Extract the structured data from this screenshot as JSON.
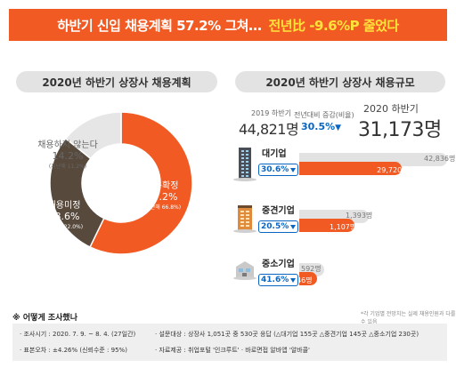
{
  "banner": {
    "title": "하반기 신입 채용계획 57.2% 그쳐…",
    "highlight": "전년比 -9.6%P 줄었다"
  },
  "left_panel": {
    "title": "2020년 하반기 상장사 채용계획"
  },
  "right_panel": {
    "title": "2020년 하반기 상장사 채용규모",
    "prev_label": "2019 하반기",
    "prev_value": "44,821명",
    "rate_label": "전년대비 증감(비율)",
    "rate_value": "30.5%",
    "cur_label": "2020 하반기",
    "cur_value": "31,173명",
    "note": "*각 기업별 전망치는 실제 채용인원과 다를 수 있음"
  },
  "chart_data": [
    {
      "type": "pie",
      "title": "2020년 하반기 상장사 채용계획",
      "donut": true,
      "slices": [
        {
          "label": "채용확정",
          "pct_text": "57.2%",
          "prev_text": "(지난해 66.8%)",
          "value": 57.2,
          "color": "#f15a22"
        },
        {
          "label": "채용미정",
          "pct_text": "28.6%",
          "prev_text": "(지난해 22.0%)",
          "value": 28.6,
          "color": "#57493c"
        },
        {
          "label": "채용하지 않는다",
          "pct_text": "14.2%",
          "prev_text": "(지난해 11.2%)",
          "value": 14.2,
          "color": "#e6e6e6"
        }
      ]
    },
    {
      "type": "bar",
      "title": "2020년 하반기 상장사 채용규모",
      "orientation": "horizontal",
      "categories": [
        "대기업",
        "중견기업",
        "중소기업"
      ],
      "series": [
        {
          "name": "2019 하반기",
          "values": [
            42836,
            1393,
            592
          ],
          "labels": [
            "42,836명",
            "1,393명",
            "592명"
          ],
          "color": "#e2e2e2"
        },
        {
          "name": "2020 하반기",
          "values": [
            29720,
            1107,
            346
          ],
          "labels": [
            "29,720명",
            "1,107명",
            "346명"
          ],
          "color": "#f15a22"
        }
      ],
      "change": [
        "30.6%",
        "20.5%",
        "41.6%"
      ]
    }
  ],
  "survey": {
    "title": "※ 어떻게 조사했나",
    "period": "· 조사시기 : 2020. 7. 9. ~ 8. 4. (27일간)",
    "error": "· 표본오차 : ±4.26% (신뢰수준 : 95%)",
    "target": "· 설문대상 : 상장사 1,051곳 중 530곳 응답 (△대기업 155곳 △중견기업 145곳 △중소기업 230곳)",
    "source": "· 자료제공 : 취업포털 '인크루트' · 바로면접 알바앱 '알바콜'"
  }
}
